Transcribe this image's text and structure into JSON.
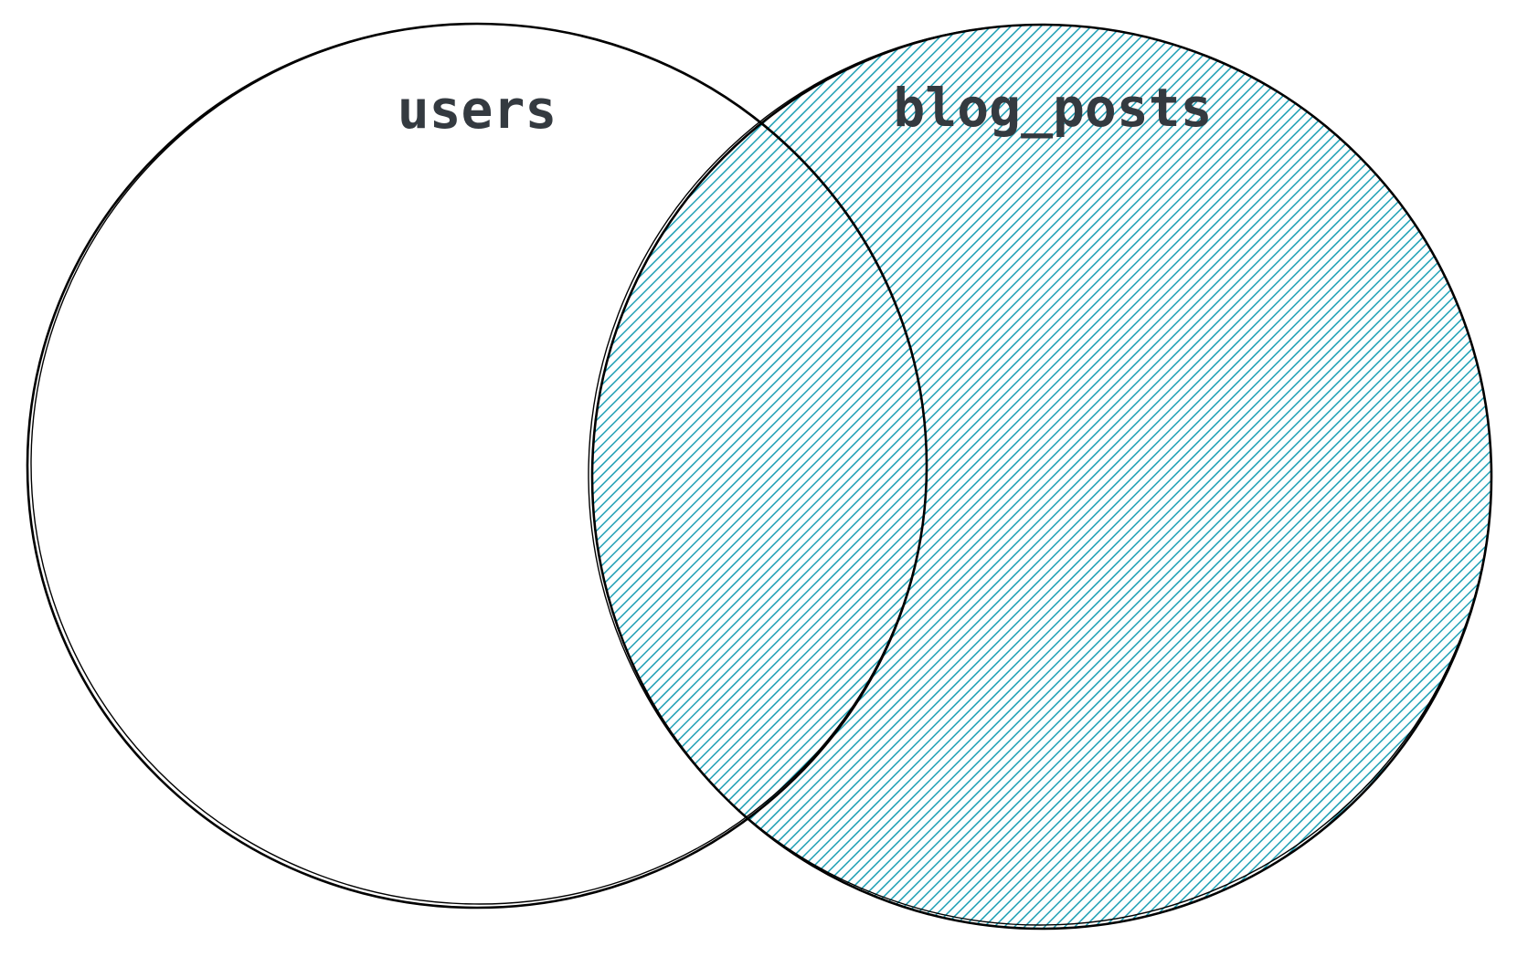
{
  "diagram": {
    "type": "venn",
    "sets": [
      {
        "id": "users",
        "label": "users",
        "highlighted": false
      },
      {
        "id": "blog_posts",
        "label": "blog_posts",
        "highlighted": true
      }
    ],
    "colors": {
      "outline": "#000000",
      "hatch": "#1a9db3",
      "label": "#343a40",
      "background": "#ffffff"
    }
  }
}
